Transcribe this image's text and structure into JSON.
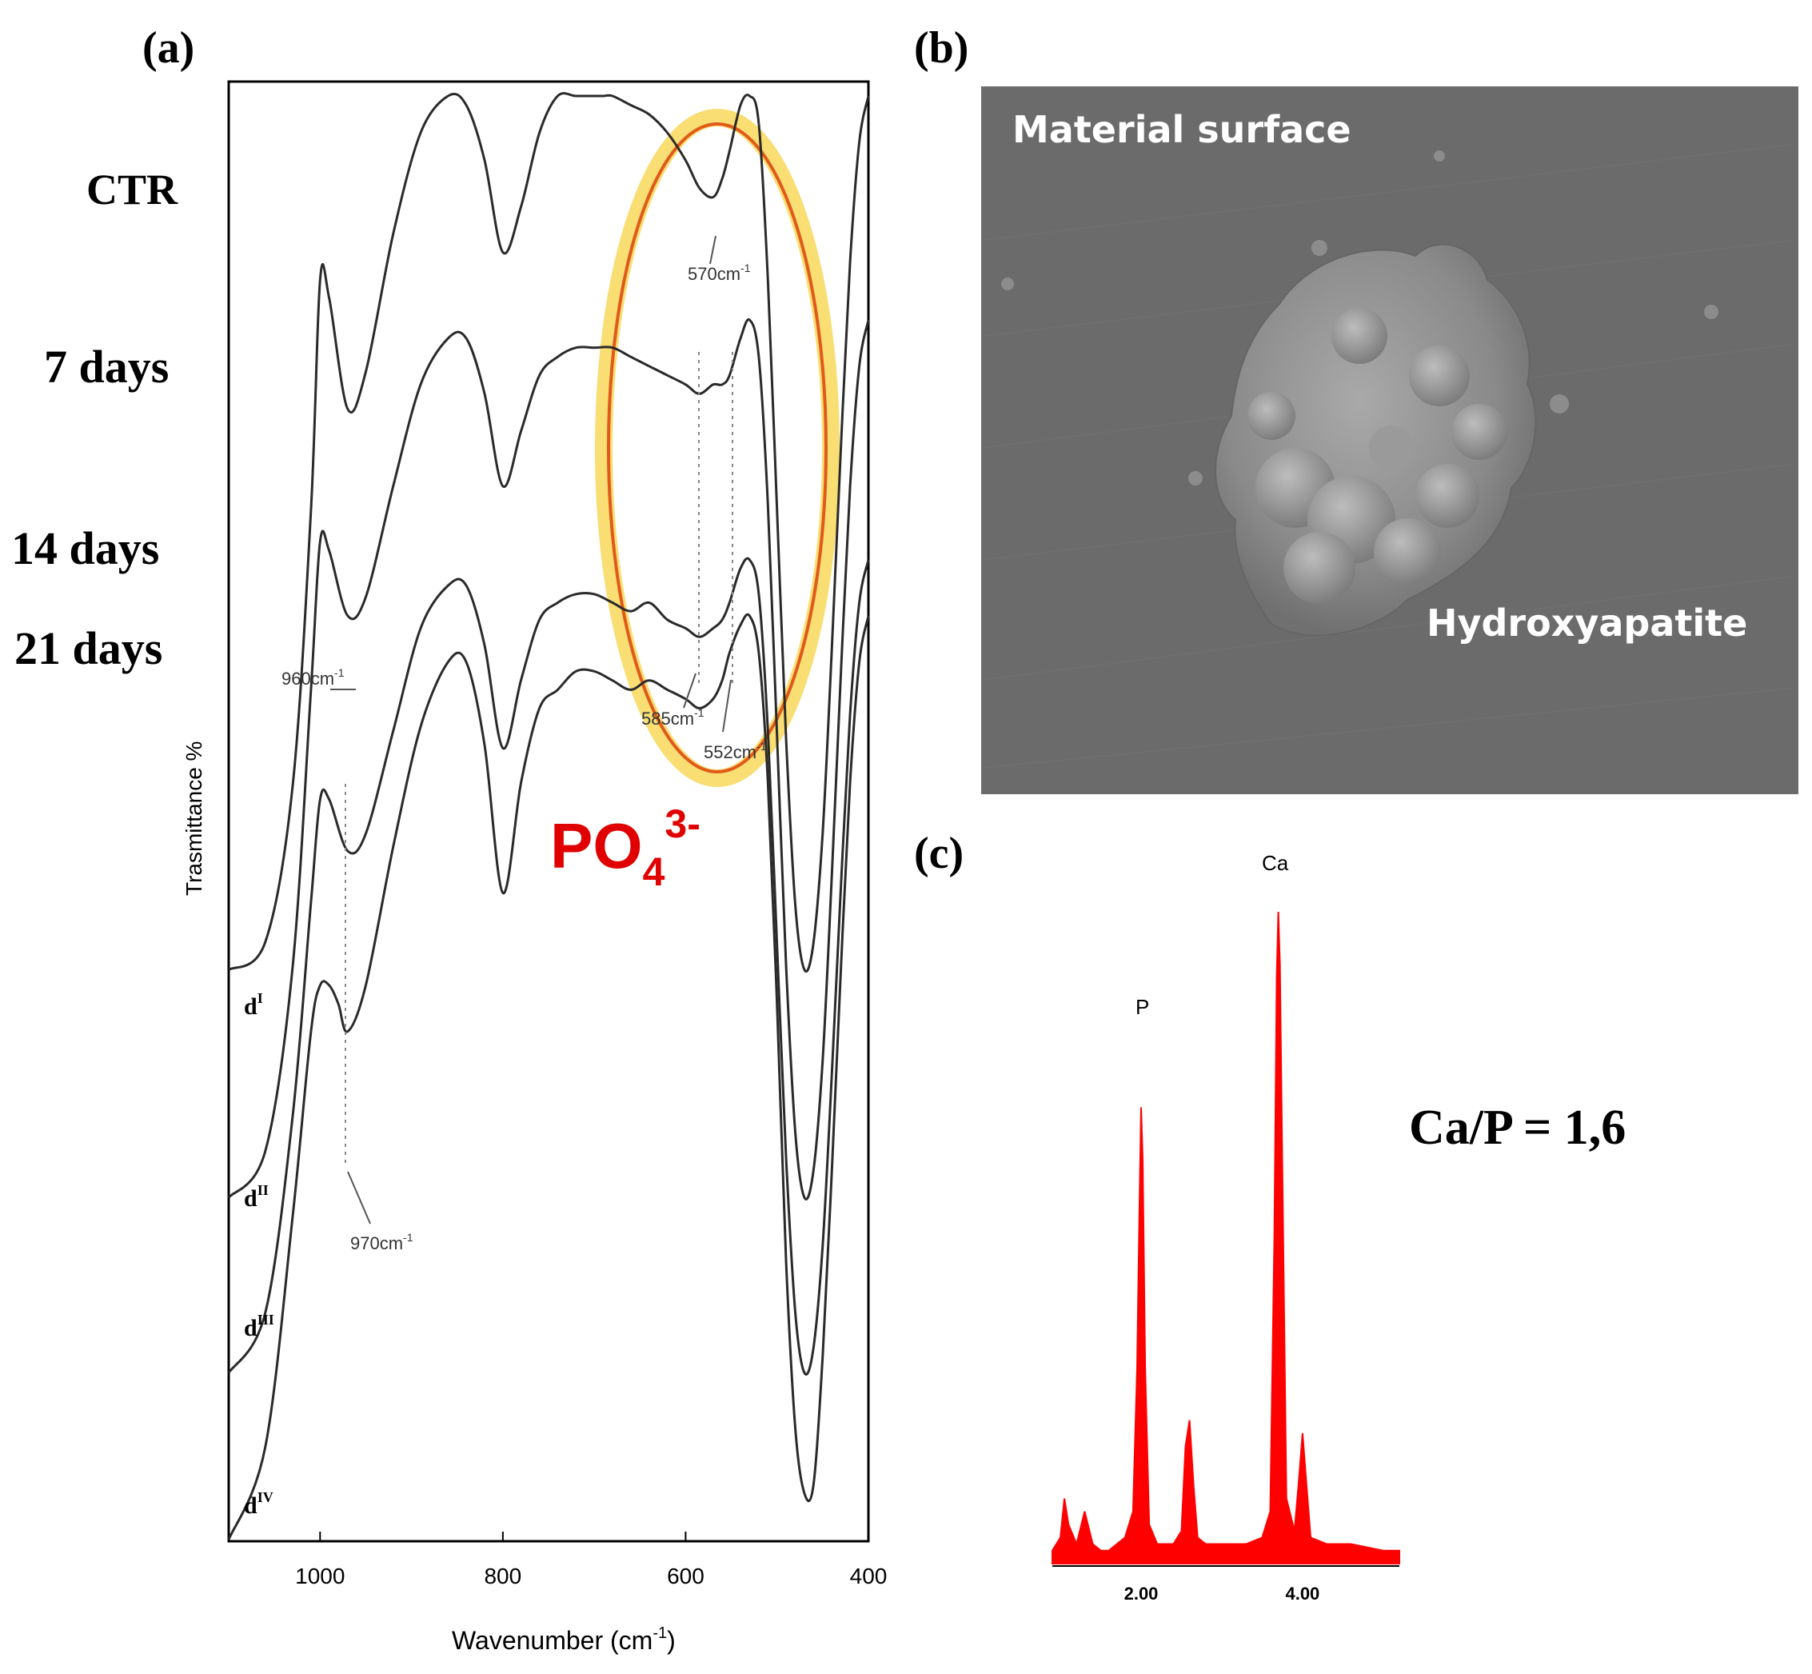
{
  "panel_a": {
    "letter": "(a)",
    "row_labels": [
      "CTR",
      "7 days",
      "14 days",
      "21 days"
    ],
    "trace_labels": [
      {
        "base": "d",
        "sup": "I"
      },
      {
        "base": "d",
        "sup": "II"
      },
      {
        "base": "d",
        "sup": "III"
      },
      {
        "base": "d",
        "sup": "IV"
      }
    ],
    "peak_labels": {
      "p570": "570cm",
      "p960": "960cm",
      "p585": "585cm",
      "p552": "552cm",
      "p970": "970cm",
      "sup": "-1"
    },
    "ion_base": "PO",
    "ion_sub": "4",
    "ion_sup": "3-",
    "highlight_color": "#f2c200",
    "ion_color": "#e00000"
  },
  "panel_b": {
    "letter": "(b)",
    "label_surface": "Material surface",
    "label_particle": "Hydroxyapatite",
    "background_color": "#6b6b6b"
  },
  "panel_c": {
    "letter": "(c)",
    "ratio_text": "Ca/P = 1,6",
    "peak_label_p": "P",
    "peak_label_ca": "Ca",
    "spectrum_color": "#ff0000"
  },
  "chart_data": [
    {
      "type": "line",
      "xlabel": "Wavenumber (cm",
      "xlabel_sup": "-1",
      "xlabel_close": ")",
      "ylabel": "Trasmittance %",
      "xlim": [
        1100,
        400
      ],
      "xticks": [
        1000,
        800,
        600,
        400
      ],
      "x_reversed": true,
      "grid": false,
      "annotated_peaks_cm1": [
        570,
        960,
        585,
        552,
        970
      ],
      "series": [
        {
          "name": "dᴵ",
          "offset": 0,
          "scale": 1.0,
          "x": [
            1100,
            1060,
            1030,
            1010,
            1000,
            990,
            970,
            950,
            920,
            890,
            860,
            840,
            820,
            800,
            780,
            760,
            740,
            720,
            700,
            690,
            680,
            660,
            640,
            620,
            600,
            585,
            570,
            560,
            552,
            540,
            530,
            520,
            510,
            500,
            490,
            480,
            470,
            460,
            450,
            440,
            430,
            420,
            410,
            400
          ],
          "y": [
            0.05,
            0.08,
            0.25,
            0.55,
            0.8,
            0.78,
            0.66,
            0.7,
            0.85,
            0.96,
            1.0,
            0.99,
            0.93,
            0.83,
            0.88,
            0.96,
            1.0,
            1.0,
            1.0,
            1.0,
            1.0,
            0.99,
            0.98,
            0.96,
            0.93,
            0.9,
            0.89,
            0.91,
            0.94,
            0.99,
            1.0,
            0.97,
            0.8,
            0.55,
            0.3,
            0.12,
            0.05,
            0.08,
            0.2,
            0.4,
            0.62,
            0.82,
            0.95,
            1.0
          ]
        },
        {
          "name": "dᴵᴵ",
          "offset": 0,
          "scale": 1.0,
          "x": [
            1100,
            1060,
            1030,
            1010,
            1000,
            990,
            970,
            950,
            920,
            890,
            860,
            840,
            820,
            800,
            780,
            760,
            740,
            720,
            700,
            680,
            660,
            640,
            620,
            600,
            585,
            570,
            560,
            552,
            540,
            530,
            520,
            510,
            500,
            490,
            480,
            470,
            460,
            450,
            440,
            430,
            420,
            410,
            400
          ],
          "y": [
            0.05,
            0.1,
            0.3,
            0.6,
            0.76,
            0.75,
            0.68,
            0.7,
            0.82,
            0.93,
            0.98,
            0.98,
            0.92,
            0.82,
            0.88,
            0.94,
            0.96,
            0.97,
            0.97,
            0.97,
            0.96,
            0.95,
            0.94,
            0.93,
            0.92,
            0.93,
            0.93,
            0.94,
            0.98,
            1.0,
            0.96,
            0.8,
            0.55,
            0.3,
            0.12,
            0.05,
            0.08,
            0.2,
            0.4,
            0.62,
            0.82,
            0.95,
            1.0
          ]
        },
        {
          "name": "dᴵᴵᴵ",
          "offset": 0,
          "scale": 1.0,
          "x": [
            1100,
            1060,
            1030,
            1010,
            1000,
            990,
            970,
            950,
            920,
            890,
            860,
            840,
            820,
            800,
            780,
            760,
            740,
            720,
            700,
            680,
            660,
            640,
            620,
            600,
            585,
            570,
            560,
            552,
            540,
            530,
            520,
            510,
            500,
            490,
            480,
            470,
            460,
            450,
            440,
            430,
            420,
            410,
            400
          ],
          "y": [
            0.05,
            0.12,
            0.35,
            0.6,
            0.72,
            0.72,
            0.66,
            0.68,
            0.8,
            0.92,
            0.97,
            0.97,
            0.9,
            0.78,
            0.86,
            0.93,
            0.95,
            0.96,
            0.96,
            0.95,
            0.94,
            0.95,
            0.93,
            0.92,
            0.91,
            0.92,
            0.93,
            0.95,
            0.99,
            1.0,
            0.96,
            0.8,
            0.55,
            0.3,
            0.12,
            0.05,
            0.08,
            0.2,
            0.4,
            0.62,
            0.82,
            0.95,
            1.0
          ]
        },
        {
          "name": "dᴵᵛ",
          "offset": 0,
          "scale": 1.0,
          "x": [
            1100,
            1060,
            1030,
            1010,
            1000,
            990,
            980,
            970,
            950,
            920,
            890,
            860,
            840,
            820,
            800,
            780,
            760,
            740,
            720,
            700,
            680,
            660,
            640,
            620,
            600,
            585,
            570,
            560,
            552,
            540,
            530,
            520,
            510,
            500,
            490,
            480,
            470,
            460,
            450,
            440,
            430,
            420,
            410,
            400
          ],
          "y": [
            0.0,
            0.1,
            0.35,
            0.55,
            0.6,
            0.6,
            0.58,
            0.55,
            0.6,
            0.75,
            0.88,
            0.95,
            0.95,
            0.86,
            0.7,
            0.82,
            0.9,
            0.92,
            0.94,
            0.94,
            0.93,
            0.92,
            0.93,
            0.92,
            0.91,
            0.9,
            0.91,
            0.93,
            0.96,
            0.99,
            1.0,
            0.96,
            0.82,
            0.58,
            0.3,
            0.12,
            0.05,
            0.06,
            0.2,
            0.4,
            0.62,
            0.82,
            0.95,
            1.0
          ]
        }
      ]
    },
    {
      "type": "area",
      "xlabel": "",
      "ylabel": "",
      "xticks": [
        "2.00",
        "4.00"
      ],
      "grid": false,
      "x": [
        0.9,
        1.0,
        1.05,
        1.1,
        1.2,
        1.3,
        1.4,
        1.5,
        1.6,
        1.7,
        1.8,
        1.9,
        1.95,
        1.98,
        2.0,
        2.02,
        2.05,
        2.1,
        2.2,
        2.4,
        2.5,
        2.55,
        2.6,
        2.65,
        2.7,
        2.8,
        3.0,
        3.3,
        3.5,
        3.6,
        3.65,
        3.68,
        3.7,
        3.72,
        3.75,
        3.8,
        3.9,
        3.95,
        4.0,
        4.05,
        4.1,
        4.3,
        4.6,
        5.0,
        5.2
      ],
      "y": [
        0.02,
        0.04,
        0.1,
        0.06,
        0.03,
        0.08,
        0.03,
        0.02,
        0.02,
        0.03,
        0.04,
        0.08,
        0.3,
        0.55,
        0.7,
        0.62,
        0.3,
        0.06,
        0.03,
        0.03,
        0.05,
        0.18,
        0.22,
        0.12,
        0.04,
        0.03,
        0.03,
        0.03,
        0.04,
        0.08,
        0.5,
        0.9,
        1.0,
        0.92,
        0.6,
        0.1,
        0.05,
        0.12,
        0.2,
        0.12,
        0.04,
        0.03,
        0.03,
        0.02,
        0.02
      ]
    }
  ]
}
